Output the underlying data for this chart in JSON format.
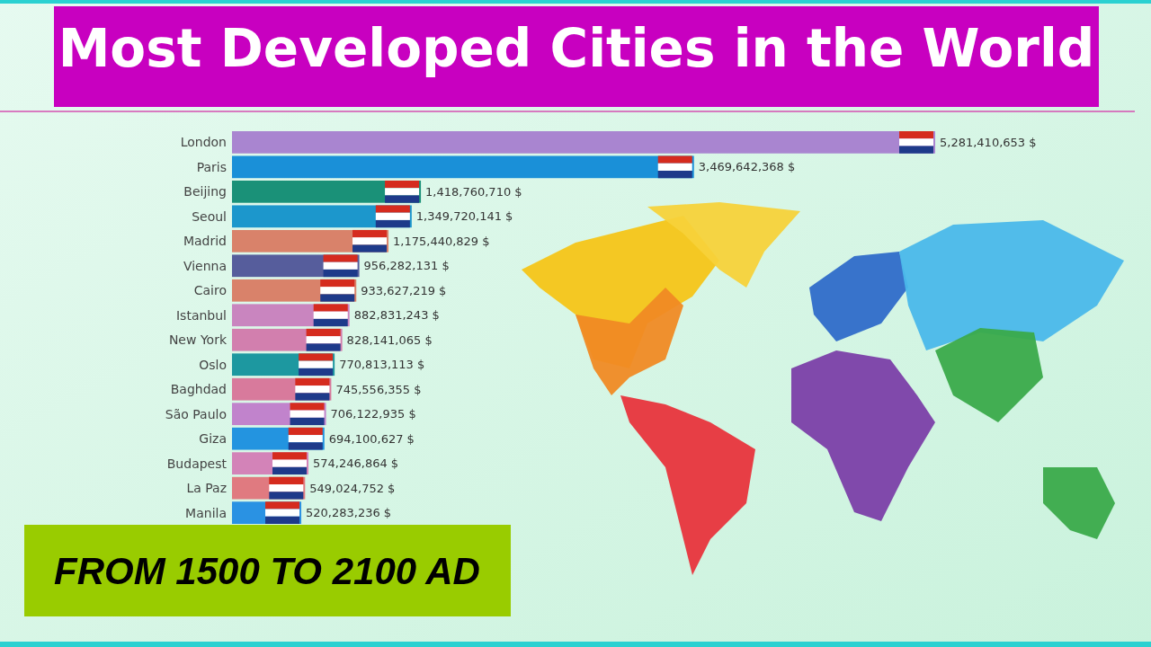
{
  "chart_data": {
    "type": "bar",
    "orientation": "horizontal",
    "title": "Most Developed Cities in the World",
    "annotations": [
      "FROM 1500 TO 2100 AD"
    ],
    "categories": [
      "London",
      "Paris",
      "Beijing",
      "Seoul",
      "Madrid",
      "Vienna",
      "Cairo",
      "Istanbul",
      "New York",
      "Oslo",
      "Baghdad",
      "São Paulo",
      "Giza",
      "Budapest",
      "La Paz",
      "Manila"
    ],
    "values": [
      5281410653,
      3469642368,
      1418760710,
      1349720141,
      1175440829,
      956282131,
      933627219,
      882831243,
      828141065,
      770813113,
      745556355,
      706122935,
      694100627,
      574246864,
      549024752,
      520283236
    ],
    "value_labels": [
      "5,281,410,653 $",
      "3,469,642,368 $",
      "1,418,760,710 $",
      "1,349,720,141 $",
      "1,175,440,829 $",
      "956,282,131 $",
      "933,627,219 $",
      "882,831,243 $",
      "828,141,065 $",
      "770,813,113 $",
      "745,556,355 $",
      "706,122,935 $",
      "694,100,627 $",
      "574,246,864 $",
      "549,024,752 $",
      "520,283,236 $"
    ],
    "colors": [
      "#a985d0",
      "#1a90d8",
      "#1a9178",
      "#1c97cc",
      "#d9826a",
      "#565d9c",
      "#d9826a",
      "#c985bf",
      "#d27fae",
      "#1d98a0",
      "#d87a9c",
      "#c183cc",
      "#2394e0",
      "#d383b8",
      "#e07a80",
      "#2a92e3"
    ]
  }
}
